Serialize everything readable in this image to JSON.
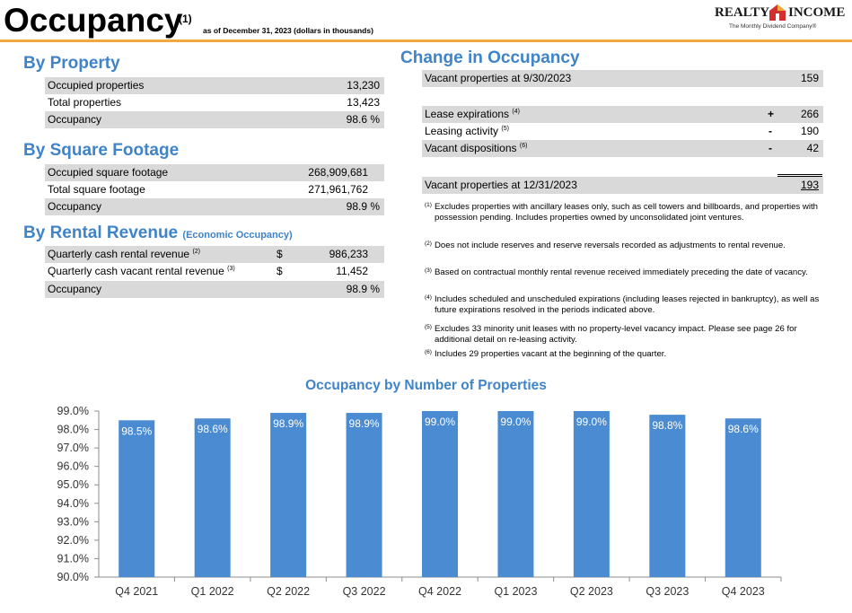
{
  "header": {
    "title": "Occupancy",
    "title_sup": "(1)",
    "subtitle": "as of December 31, 2023 (dollars in thousands)"
  },
  "logo": {
    "left_word": "REALTY",
    "right_word": "INCOME",
    "tagline": "The Monthly Dividend Company®",
    "colors": {
      "red": "#d32f2f",
      "orange": "#f2a93b"
    }
  },
  "by_property": {
    "title": "By Property",
    "rows": [
      {
        "label": "Occupied properties",
        "value": "13,230"
      },
      {
        "label": "Total properties",
        "value": "13,423"
      },
      {
        "label": "Occupancy",
        "value": "98.6 %"
      }
    ]
  },
  "by_square_footage": {
    "title": "By Square Footage",
    "rows": [
      {
        "label": "Occupied square footage",
        "value": "268,909,681"
      },
      {
        "label": "Total square footage",
        "value": "271,961,762"
      },
      {
        "label": "Occupancy",
        "value": "98.9 %"
      }
    ]
  },
  "by_rental_revenue": {
    "title": "By Rental Revenue",
    "subtitle": "(Economic Occupancy)",
    "rows": [
      {
        "label": "Quarterly cash rental revenue",
        "sup": "(2)",
        "currency": "$",
        "value": "986,233"
      },
      {
        "label": "Quarterly cash vacant rental revenue",
        "sup": "(3)",
        "currency": "$",
        "value": "11,452"
      },
      {
        "label": "Occupancy",
        "sup": "",
        "currency": "",
        "value": "98.9 %"
      }
    ]
  },
  "change_in_occupancy": {
    "title": "Change in Occupancy",
    "start": {
      "label": "Vacant properties at 9/30/2023",
      "value": "159"
    },
    "changes": [
      {
        "label": "Lease expirations",
        "sup": "(4)",
        "sign": "+",
        "value": "266"
      },
      {
        "label": "Leasing activity",
        "sup": "(5)",
        "sign": "-",
        "value": "190"
      },
      {
        "label": "Vacant dispositions",
        "sup": "(6)",
        "sign": "-",
        "value": "42"
      }
    ],
    "end": {
      "label": "Vacant properties at 12/31/2023",
      "value": "193"
    }
  },
  "footnotes": [
    {
      "mark": "(1)",
      "text": "Excludes properties with ancillary leases only, such as cell towers and billboards, and properties with possession pending. Includes properties owned by unconsolidated joint ventures."
    },
    {
      "mark": "(2)",
      "text": "Does not include reserves and reserve reversals recorded as adjustments to rental revenue."
    },
    {
      "mark": "(3)",
      "text": "Based on contractual monthly rental revenue received immediately preceding the date of vacancy."
    },
    {
      "mark": "(4)",
      "text": "Includes scheduled and unscheduled expirations (including leases rejected in bankruptcy), as well as future expirations resolved in the periods indicated above."
    },
    {
      "mark": "(5)",
      "text": "Excludes 33 minority unit leases with no property-level vacancy impact. Please see page 26 for additional detail on re-leasing activity."
    },
    {
      "mark": "(6)",
      "text": "Includes 29 properties vacant at the beginning of the quarter."
    }
  ],
  "chart_data": {
    "type": "bar",
    "title": "Occupancy by Number of Properties",
    "categories": [
      "Q4 2021",
      "Q1 2022",
      "Q2 2022",
      "Q3 2022",
      "Q4 2022",
      "Q1 2023",
      "Q2 2023",
      "Q3 2023",
      "Q4 2023"
    ],
    "values": [
      98.5,
      98.6,
      98.9,
      98.9,
      99.0,
      99.0,
      99.0,
      98.8,
      98.6
    ],
    "data_labels": [
      "98.5%",
      "98.6%",
      "98.9%",
      "98.9%",
      "99.0%",
      "99.0%",
      "99.0%",
      "98.8%",
      "98.6%"
    ],
    "ylim": [
      90.0,
      99.0
    ],
    "yticks": [
      "90.0%",
      "91.0%",
      "92.0%",
      "93.0%",
      "94.0%",
      "95.0%",
      "96.0%",
      "97.0%",
      "98.0%",
      "99.0%"
    ],
    "xlabel": "",
    "ylabel": "",
    "grid": false,
    "bar_color": "#4a8bd1"
  }
}
